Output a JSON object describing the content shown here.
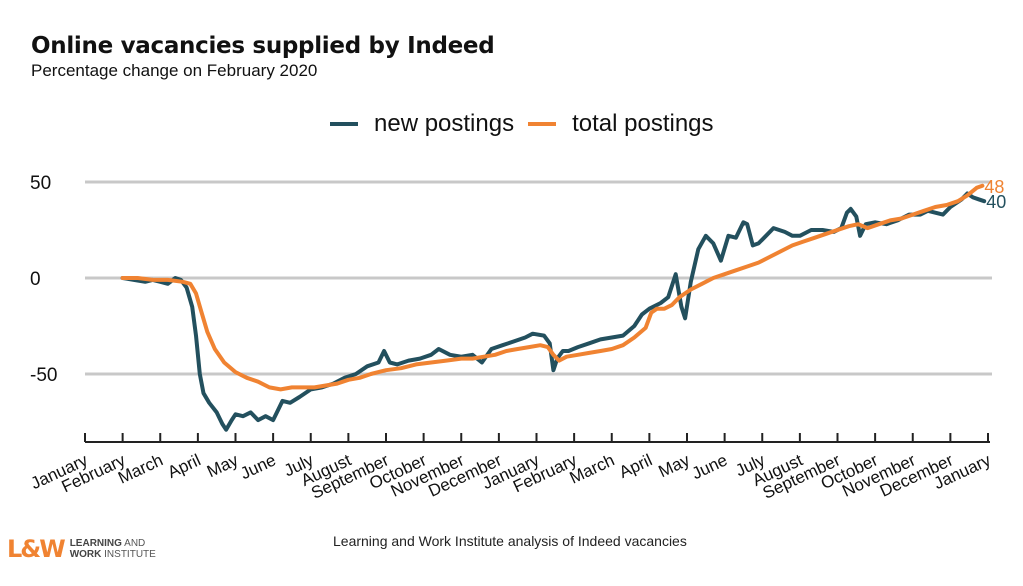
{
  "chart_data": {
    "type": "line",
    "title": "Online vacancies supplied by Indeed",
    "subtitle": "Percentage change on February 2020",
    "xlabel": "",
    "ylabel": "",
    "ylim": [
      -80,
      55
    ],
    "yticks": [
      50,
      0,
      -50
    ],
    "ytick_labels": [
      "50",
      "0",
      "-50"
    ],
    "grid": "horizontal",
    "legend_position": "top-center",
    "x_unit": "months since January 2020",
    "xlim": [
      0,
      24
    ],
    "xtick_labels": [
      "January",
      "February",
      "March",
      "April",
      "May",
      "June",
      "July",
      "August",
      "September",
      "October",
      "November",
      "December",
      "January",
      "February",
      "March",
      "April",
      "May",
      "June",
      "July",
      "August",
      "September",
      "October",
      "November",
      "December",
      "January"
    ],
    "series": [
      {
        "name": "new postings",
        "color": "#23505e",
        "end_label": "40",
        "points": [
          [
            1.0,
            0
          ],
          [
            1.3,
            -1
          ],
          [
            1.6,
            -2
          ],
          [
            1.8,
            -1
          ],
          [
            2.0,
            -2
          ],
          [
            2.2,
            -3
          ],
          [
            2.4,
            0
          ],
          [
            2.55,
            -1
          ],
          [
            2.7,
            -5
          ],
          [
            2.85,
            -15
          ],
          [
            2.95,
            -30
          ],
          [
            3.05,
            -50
          ],
          [
            3.15,
            -60
          ],
          [
            3.3,
            -65
          ],
          [
            3.5,
            -70
          ],
          [
            3.65,
            -76
          ],
          [
            3.75,
            -79
          ],
          [
            3.9,
            -74
          ],
          [
            4.0,
            -71
          ],
          [
            4.2,
            -72
          ],
          [
            4.4,
            -70
          ],
          [
            4.6,
            -74
          ],
          [
            4.8,
            -72
          ],
          [
            5.0,
            -74
          ],
          [
            5.1,
            -70
          ],
          [
            5.25,
            -64
          ],
          [
            5.45,
            -65
          ],
          [
            5.7,
            -62
          ],
          [
            6.0,
            -58
          ],
          [
            6.3,
            -57
          ],
          [
            6.6,
            -55
          ],
          [
            6.9,
            -52
          ],
          [
            7.2,
            -50
          ],
          [
            7.5,
            -46
          ],
          [
            7.8,
            -44
          ],
          [
            7.95,
            -38
          ],
          [
            8.1,
            -44
          ],
          [
            8.3,
            -45
          ],
          [
            8.6,
            -43
          ],
          [
            8.9,
            -42
          ],
          [
            9.2,
            -40
          ],
          [
            9.4,
            -37
          ],
          [
            9.7,
            -40
          ],
          [
            10.0,
            -41
          ],
          [
            10.3,
            -40
          ],
          [
            10.55,
            -44
          ],
          [
            10.8,
            -37
          ],
          [
            11.1,
            -35
          ],
          [
            11.4,
            -33
          ],
          [
            11.7,
            -31
          ],
          [
            11.9,
            -29
          ],
          [
            12.2,
            -30
          ],
          [
            12.35,
            -34
          ],
          [
            12.45,
            -48
          ],
          [
            12.55,
            -42
          ],
          [
            12.7,
            -38
          ],
          [
            12.85,
            -38
          ],
          [
            13.1,
            -36
          ],
          [
            13.4,
            -34
          ],
          [
            13.7,
            -32
          ],
          [
            14.0,
            -31
          ],
          [
            14.3,
            -30
          ],
          [
            14.6,
            -25
          ],
          [
            14.8,
            -19
          ],
          [
            15.0,
            -16
          ],
          [
            15.3,
            -13
          ],
          [
            15.5,
            -10
          ],
          [
            15.7,
            2
          ],
          [
            15.85,
            -15
          ],
          [
            15.95,
            -21
          ],
          [
            16.1,
            -2
          ],
          [
            16.3,
            15
          ],
          [
            16.5,
            22
          ],
          [
            16.7,
            18
          ],
          [
            16.9,
            9
          ],
          [
            17.1,
            22
          ],
          [
            17.3,
            21
          ],
          [
            17.5,
            29
          ],
          [
            17.6,
            28
          ],
          [
            17.75,
            17
          ],
          [
            17.9,
            18
          ],
          [
            18.1,
            22
          ],
          [
            18.3,
            26
          ],
          [
            18.6,
            24
          ],
          [
            18.8,
            22
          ],
          [
            19.0,
            22
          ],
          [
            19.3,
            25
          ],
          [
            19.6,
            25
          ],
          [
            19.9,
            24
          ],
          [
            20.1,
            26
          ],
          [
            20.25,
            34
          ],
          [
            20.35,
            36
          ],
          [
            20.5,
            32
          ],
          [
            20.6,
            22
          ],
          [
            20.75,
            28
          ],
          [
            21.0,
            29
          ],
          [
            21.3,
            28
          ],
          [
            21.6,
            30
          ],
          [
            21.9,
            33
          ],
          [
            22.2,
            33
          ],
          [
            22.4,
            35
          ],
          [
            22.6,
            34
          ],
          [
            22.8,
            33
          ],
          [
            23.0,
            37
          ],
          [
            23.3,
            41
          ],
          [
            23.45,
            44
          ],
          [
            23.6,
            42
          ],
          [
            23.75,
            41
          ],
          [
            23.9,
            40
          ]
        ]
      },
      {
        "name": "total postings",
        "color": "#f08332",
        "end_label": "48",
        "points": [
          [
            1.0,
            0
          ],
          [
            1.4,
            0
          ],
          [
            1.8,
            -1
          ],
          [
            2.2,
            -1
          ],
          [
            2.6,
            -2
          ],
          [
            2.8,
            -3
          ],
          [
            2.95,
            -8
          ],
          [
            3.1,
            -18
          ],
          [
            3.25,
            -28
          ],
          [
            3.45,
            -37
          ],
          [
            3.7,
            -44
          ],
          [
            4.0,
            -49
          ],
          [
            4.3,
            -52
          ],
          [
            4.6,
            -54
          ],
          [
            4.9,
            -57
          ],
          [
            5.2,
            -58
          ],
          [
            5.5,
            -57
          ],
          [
            5.8,
            -57
          ],
          [
            6.1,
            -57
          ],
          [
            6.4,
            -56
          ],
          [
            6.7,
            -55
          ],
          [
            7.0,
            -53
          ],
          [
            7.3,
            -52
          ],
          [
            7.6,
            -50
          ],
          [
            8.0,
            -48
          ],
          [
            8.4,
            -47
          ],
          [
            8.8,
            -45
          ],
          [
            9.2,
            -44
          ],
          [
            9.6,
            -43
          ],
          [
            10.0,
            -42
          ],
          [
            10.3,
            -42
          ],
          [
            10.6,
            -41
          ],
          [
            10.9,
            -40
          ],
          [
            11.2,
            -38
          ],
          [
            11.5,
            -37
          ],
          [
            11.8,
            -36
          ],
          [
            12.1,
            -35
          ],
          [
            12.3,
            -36
          ],
          [
            12.45,
            -40
          ],
          [
            12.6,
            -43
          ],
          [
            12.8,
            -41
          ],
          [
            13.1,
            -40
          ],
          [
            13.4,
            -39
          ],
          [
            13.7,
            -38
          ],
          [
            14.0,
            -37
          ],
          [
            14.3,
            -35
          ],
          [
            14.6,
            -31
          ],
          [
            14.9,
            -26
          ],
          [
            15.05,
            -18
          ],
          [
            15.2,
            -16
          ],
          [
            15.4,
            -16
          ],
          [
            15.6,
            -14
          ],
          [
            15.8,
            -10
          ],
          [
            16.1,
            -6
          ],
          [
            16.4,
            -3
          ],
          [
            16.7,
            0
          ],
          [
            17.0,
            2
          ],
          [
            17.3,
            4
          ],
          [
            17.6,
            6
          ],
          [
            17.9,
            8
          ],
          [
            18.2,
            11
          ],
          [
            18.5,
            14
          ],
          [
            18.8,
            17
          ],
          [
            19.1,
            19
          ],
          [
            19.4,
            21
          ],
          [
            19.7,
            23
          ],
          [
            20.0,
            25
          ],
          [
            20.3,
            27
          ],
          [
            20.55,
            28
          ],
          [
            20.8,
            26
          ],
          [
            21.1,
            28
          ],
          [
            21.4,
            30
          ],
          [
            21.7,
            31
          ],
          [
            22.0,
            33
          ],
          [
            22.3,
            35
          ],
          [
            22.6,
            37
          ],
          [
            22.9,
            38
          ],
          [
            23.2,
            40
          ],
          [
            23.45,
            43
          ],
          [
            23.7,
            47
          ],
          [
            23.85,
            48
          ]
        ]
      }
    ],
    "caption": "Learning and Work Institute analysis of Indeed vacancies"
  },
  "logo": {
    "mark": "L&W",
    "line1_bold": "LEARNING",
    "line1_rest": " AND",
    "line2_bold": "WORK",
    "line2_rest": " INSTITUTE"
  }
}
